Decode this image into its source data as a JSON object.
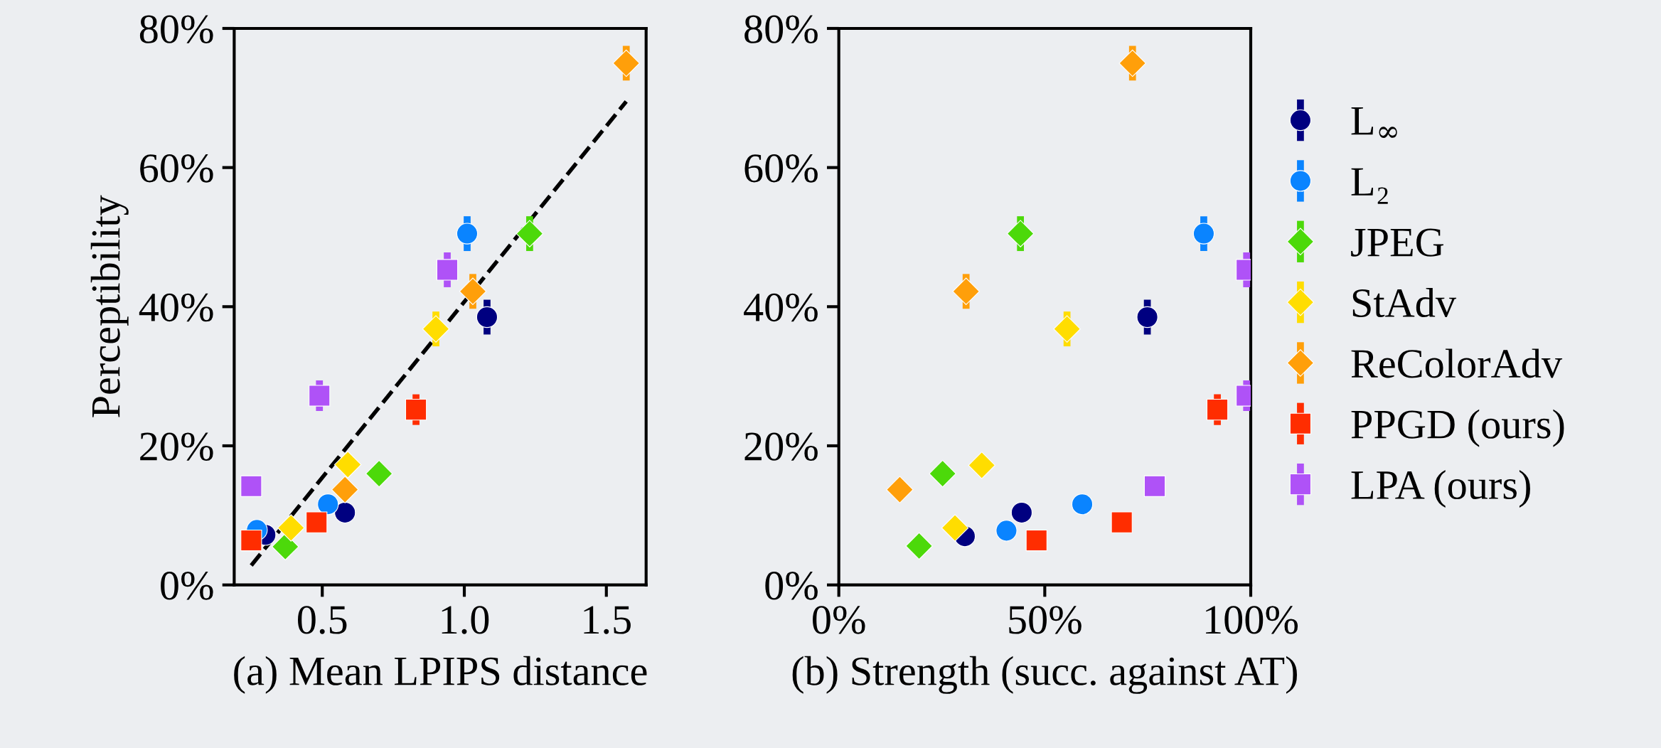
{
  "chart_data": [
    {
      "type": "scatter",
      "xlabel": "(a) Mean LPIPS distance",
      "ylabel": "Perceptibility",
      "xlim": [
        0.19,
        1.64
      ],
      "xticks": [
        {
          "value": 0.5,
          "label": "0.5"
        },
        {
          "value": 1.0,
          "label": "1.0"
        },
        {
          "value": 1.5,
          "label": "1.5"
        }
      ],
      "ylim": [
        0,
        80
      ],
      "yticks": [
        {
          "value": 0,
          "label": "0%"
        },
        {
          "value": 20,
          "label": "20%"
        },
        {
          "value": 40,
          "label": "40%"
        },
        {
          "value": 60,
          "label": "60%"
        },
        {
          "value": 80,
          "label": "80%"
        }
      ],
      "grid": false,
      "legend": false,
      "series": [
        {
          "color": "#000080",
          "marker": "circle",
          "x": [
            0.3,
            0.58,
            1.08
          ],
          "values": [
            7.2,
            10.4,
            38.5
          ],
          "errors": [
            null,
            null,
            2.5
          ]
        },
        {
          "color": "#0a84ff",
          "marker": "circle",
          "x": [
            0.27,
            0.52,
            1.01
          ],
          "values": [
            7.9,
            11.6,
            50.5
          ],
          "errors": [
            null,
            null,
            2.5
          ]
        },
        {
          "color": "#4cd90a",
          "marker": "diamond",
          "x": [
            0.37,
            0.7,
            1.23
          ],
          "values": [
            5.5,
            16.0,
            50.5
          ],
          "errors": [
            null,
            null,
            2.5
          ]
        },
        {
          "color": "#ffdd00",
          "marker": "diamond",
          "x": [
            0.39,
            0.59,
            0.9
          ],
          "values": [
            8.2,
            17.3,
            36.8
          ],
          "errors": [
            null,
            null,
            2.5
          ]
        },
        {
          "color": "#ff9f0a",
          "marker": "diamond",
          "x": [
            0.58,
            1.03,
            1.57
          ],
          "values": [
            13.7,
            42.2,
            75.0
          ],
          "errors": [
            null,
            2.5,
            2.5
          ]
        },
        {
          "color": "#ff2d00",
          "marker": "square",
          "x": [
            0.25,
            0.48,
            0.83
          ],
          "values": [
            6.4,
            9.0,
            25.2
          ],
          "errors": [
            null,
            null,
            2.2
          ]
        },
        {
          "color": "#af52f7",
          "marker": "square",
          "x": [
            0.25,
            0.49,
            0.94
          ],
          "values": [
            14.2,
            27.2,
            45.3
          ],
          "errors": [
            null,
            2.2,
            2.5
          ]
        },
        {
          "type": "line",
          "color": "#000000",
          "line_style": "dashed",
          "marker": "none",
          "x": [
            0.25,
            1.57
          ],
          "values": [
            2.8,
            69.5
          ]
        }
      ]
    },
    {
      "type": "scatter",
      "xlabel": "(b) Strength (succ. against AT)",
      "xlim": [
        0,
        100
      ],
      "xticks": [
        {
          "value": 0,
          "label": "0%"
        },
        {
          "value": 50,
          "label": "50%"
        },
        {
          "value": 100,
          "label": "100%"
        }
      ],
      "ylim": [
        0,
        80
      ],
      "yticks": [
        {
          "value": 0,
          "label": "0%"
        },
        {
          "value": 20,
          "label": "20%"
        },
        {
          "value": 40,
          "label": "40%"
        },
        {
          "value": 60,
          "label": "60%"
        },
        {
          "value": 80,
          "label": "80%"
        }
      ],
      "grid": false,
      "legend": "right",
      "series": [
        {
          "name": "L$_{∞}$",
          "color": "#000080",
          "marker": "circle",
          "x": [
            30.6,
            44.4,
            74.9
          ],
          "values": [
            7.0,
            10.4,
            38.5
          ],
          "errors": [
            null,
            null,
            2.5
          ]
        },
        {
          "name": "L₂",
          "color": "#0a84ff",
          "marker": "circle",
          "x": [
            40.7,
            59.1,
            88.6
          ],
          "values": [
            7.8,
            11.6,
            50.5
          ],
          "errors": [
            null,
            null,
            2.5
          ]
        },
        {
          "name": "JPEG",
          "color": "#4cd90a",
          "marker": "diamond",
          "x": [
            19.5,
            25.2,
            44.1
          ],
          "values": [
            5.6,
            16.0,
            50.5
          ],
          "errors": [
            null,
            null,
            2.5
          ]
        },
        {
          "name": "StAdv",
          "color": "#ffdd00",
          "marker": "diamond",
          "x": [
            28.2,
            34.7,
            55.4
          ],
          "values": [
            8.2,
            17.2,
            36.8
          ],
          "errors": [
            null,
            null,
            2.5
          ]
        },
        {
          "name": "ReColorAdv",
          "color": "#ff9f0a",
          "marker": "diamond",
          "x": [
            14.8,
            30.9,
            71.3
          ],
          "values": [
            13.7,
            42.2,
            75.0
          ],
          "errors": [
            null,
            2.5,
            2.5
          ]
        },
        {
          "name": "PPGD (ours)",
          "color": "#ff2d00",
          "marker": "square",
          "x": [
            48.0,
            68.7,
            91.9
          ],
          "values": [
            6.4,
            9.0,
            25.2
          ],
          "errors": [
            null,
            null,
            2.2
          ]
        },
        {
          "name": "LPA (ours)",
          "color": "#af52f7",
          "marker": "square",
          "x": [
            76.7,
            99.0,
            99.0
          ],
          "values": [
            14.2,
            27.2,
            45.3
          ],
          "errors": [
            null,
            2.2,
            2.5
          ]
        }
      ]
    }
  ]
}
